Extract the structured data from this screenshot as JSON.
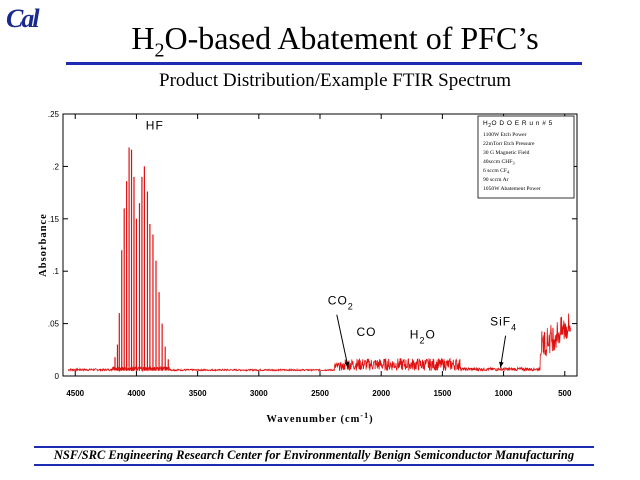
{
  "logo": {
    "text": "Cal",
    "color": "#1a2a8c"
  },
  "slide": {
    "title_pre": "H",
    "title_sub": "2",
    "title_post": "O-based Abatement of PFC’s",
    "subtitle": "Product Distribution/Example FTIR Spectrum",
    "footer": "NSF/SRC Engineering Research Center for Environmentally Benign Semiconductor Manufacturing",
    "accent_color": "#1d2bb5"
  },
  "chart_data": {
    "type": "line",
    "title": "",
    "xlabel": "Wavenumber (cm",
    "xlabel_sup": "-1",
    "xlabel_close": ")",
    "ylabel": "Absorbance",
    "xlim": [
      4600,
      400
    ],
    "ylim": [
      0,
      0.25
    ],
    "x_ticks": [
      4500,
      4000,
      3500,
      3000,
      2500,
      2000,
      1500,
      1000,
      500
    ],
    "x_tick_labels": [
      "4500",
      "4000",
      "3500",
      "3000",
      "2500",
      "2000",
      "1500",
      "1000",
      "500"
    ],
    "y_ticks": [
      0,
      0.05,
      0.1,
      0.15,
      0.2,
      0.25
    ],
    "y_tick_labels": [
      "0",
      ".05",
      ".1",
      ".15",
      ".2",
      ".25"
    ],
    "line_color": "#e01010",
    "baseline": 0.005,
    "hf_lines": [
      {
        "x": 4175,
        "y": 0.018
      },
      {
        "x": 4155,
        "y": 0.03
      },
      {
        "x": 4140,
        "y": 0.06
      },
      {
        "x": 4120,
        "y": 0.12
      },
      {
        "x": 4100,
        "y": 0.16
      },
      {
        "x": 4080,
        "y": 0.186
      },
      {
        "x": 4060,
        "y": 0.218
      },
      {
        "x": 4040,
        "y": 0.216
      },
      {
        "x": 4020,
        "y": 0.19
      },
      {
        "x": 4000,
        "y": 0.15
      },
      {
        "x": 3975,
        "y": 0.165
      },
      {
        "x": 3955,
        "y": 0.19
      },
      {
        "x": 3935,
        "y": 0.2
      },
      {
        "x": 3910,
        "y": 0.176
      },
      {
        "x": 3890,
        "y": 0.145
      },
      {
        "x": 3865,
        "y": 0.135
      },
      {
        "x": 3840,
        "y": 0.11
      },
      {
        "x": 3815,
        "y": 0.08
      },
      {
        "x": 3790,
        "y": 0.05
      },
      {
        "x": 3765,
        "y": 0.028
      },
      {
        "x": 3740,
        "y": 0.016
      }
    ],
    "regions": [
      {
        "from": 4560,
        "to": 4200,
        "noise": 0.002
      },
      {
        "from": 3720,
        "to": 2380,
        "noise": 0.0015
      },
      {
        "from": 2380,
        "to": 2300,
        "noise": 0.008
      },
      {
        "from": 2300,
        "to": 2050,
        "noise": 0.012
      },
      {
        "from": 2050,
        "to": 1350,
        "noise": 0.012
      },
      {
        "from": 1350,
        "to": 700,
        "noise": 0.003
      },
      {
        "from": 700,
        "to": 450,
        "noise": 0.035
      }
    ],
    "annotations": [
      {
        "label": "HF",
        "x": 3850,
        "y": 0.235
      },
      {
        "label": "CO",
        "sub": "2",
        "x": 2330,
        "y": 0.068,
        "arrow_to": [
          2270,
          0.008
        ]
      },
      {
        "label": "CO",
        "x": 2120,
        "y": 0.038
      },
      {
        "label": "H",
        "sub": "2",
        "post": "O",
        "x": 1660,
        "y": 0.036
      },
      {
        "label": "SiF",
        "sub": "4",
        "x": 1000,
        "y": 0.048,
        "arrow_to": [
          1025,
          0.008
        ]
      }
    ],
    "legend_box": {
      "title_pre": "H",
      "title_sub": "2",
      "title_post": "O  D O E  R u n  # 5",
      "lines": [
        "1100W Etch Power",
        "22mTorr Etch Pressure",
        "30 G Magnetic Field",
        "40sccm CHF",
        "6 sccm CF",
        "90 sccm Ar",
        "1050W Abatement Power"
      ],
      "line_subs": [
        "",
        "",
        "",
        "3",
        "4",
        "",
        ""
      ]
    }
  }
}
